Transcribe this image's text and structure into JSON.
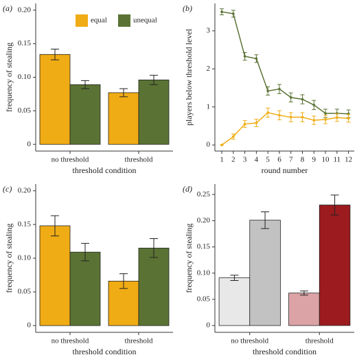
{
  "chart_data": [
    {
      "type": "bar",
      "panel_label": "(a)",
      "x_label": "threshold condition",
      "y_label": "frequency of stealing",
      "categories": [
        "no threshold",
        "threshold"
      ],
      "series": [
        {
          "name": "equal",
          "color": "#f0ac14",
          "values": [
            0.134,
            0.077
          ],
          "errors": [
            0.008,
            0.006
          ]
        },
        {
          "name": "unequal",
          "color": "#5a7334",
          "values": [
            0.089,
            0.096
          ],
          "errors": [
            0.006,
            0.007
          ]
        }
      ],
      "ylim": [
        -0.01,
        0.21
      ],
      "yticks": [
        0,
        0.05,
        {
          "value": 0.1,
          "label": "0.10"
        },
        0.15,
        {
          "value": 0.2,
          "label": "0.20"
        }
      ],
      "legend": "top"
    },
    {
      "type": "line",
      "panel_label": "(b)",
      "x_label": "round number",
      "y_label": "players below threshold level",
      "x": [
        1,
        2,
        3,
        4,
        5,
        6,
        7,
        8,
        9,
        10,
        11,
        12
      ],
      "series": [
        {
          "color": "#5a7334",
          "values": [
            3.5,
            3.45,
            2.33,
            2.27,
            1.42,
            1.47,
            1.25,
            1.2,
            1.05,
            0.83,
            0.83,
            0.82
          ],
          "errors": [
            0.08,
            0.09,
            0.1,
            0.1,
            0.11,
            0.12,
            0.12,
            0.12,
            0.12,
            0.11,
            0.11,
            0.1
          ]
        },
        {
          "color": "#f0ac14",
          "values": [
            0,
            0.22,
            0.55,
            0.58,
            0.85,
            0.78,
            0.73,
            0.73,
            0.65,
            0.67,
            0.72,
            0.7
          ],
          "errors": [
            0,
            0.07,
            0.09,
            0.1,
            0.12,
            0.12,
            0.12,
            0.12,
            0.11,
            0.11,
            0.1,
            0.1
          ]
        }
      ],
      "xlim": [
        0.4,
        12.5
      ],
      "xticks": [
        1,
        2,
        3,
        4,
        5,
        6,
        7,
        8,
        9,
        10,
        11,
        12
      ],
      "ylim": [
        -0.16,
        3.72
      ],
      "yticks": [
        0,
        1,
        2,
        3
      ]
    },
    {
      "type": "bar",
      "panel_label": "(c)",
      "x_label": "threshold condition",
      "y_label": "frequency of stealing",
      "categories": [
        "no threshold",
        "threshold"
      ],
      "series": [
        {
          "color": "#f0ac14",
          "values": [
            0.148,
            0.066
          ],
          "errors": [
            0.015,
            0.011
          ]
        },
        {
          "color": "#5a7334",
          "values": [
            0.109,
            0.115
          ],
          "errors": [
            0.013,
            0.014
          ]
        }
      ],
      "ylim": [
        -0.01,
        0.21
      ],
      "yticks": [
        0,
        0.05,
        {
          "value": 0.1,
          "label": "0.10"
        },
        0.15,
        {
          "value": 0.2,
          "label": "0.20"
        }
      ]
    },
    {
      "type": "bar",
      "panel_label": "(d)",
      "x_label": "threshold condition",
      "y_label": "frequency of stealing",
      "categories": [
        "no threshold",
        "threshold"
      ],
      "series": [
        {
          "colors": [
            "#e8e8e8",
            "#dba3a6"
          ],
          "values": [
            0.091,
            0.062
          ],
          "errors": [
            0.005,
            0.004
          ]
        },
        {
          "colors": [
            "#c2c2c2",
            "#9b1b1f"
          ],
          "values": [
            0.201,
            0.23
          ],
          "errors": [
            0.016,
            0.019
          ]
        }
      ],
      "ylim": [
        -0.013,
        0.27
      ],
      "yticks": [
        0,
        0.05,
        {
          "value": 0.1,
          "label": "0.10"
        },
        0.15,
        {
          "value": 0.2,
          "label": "0.20"
        },
        0.25
      ]
    }
  ]
}
